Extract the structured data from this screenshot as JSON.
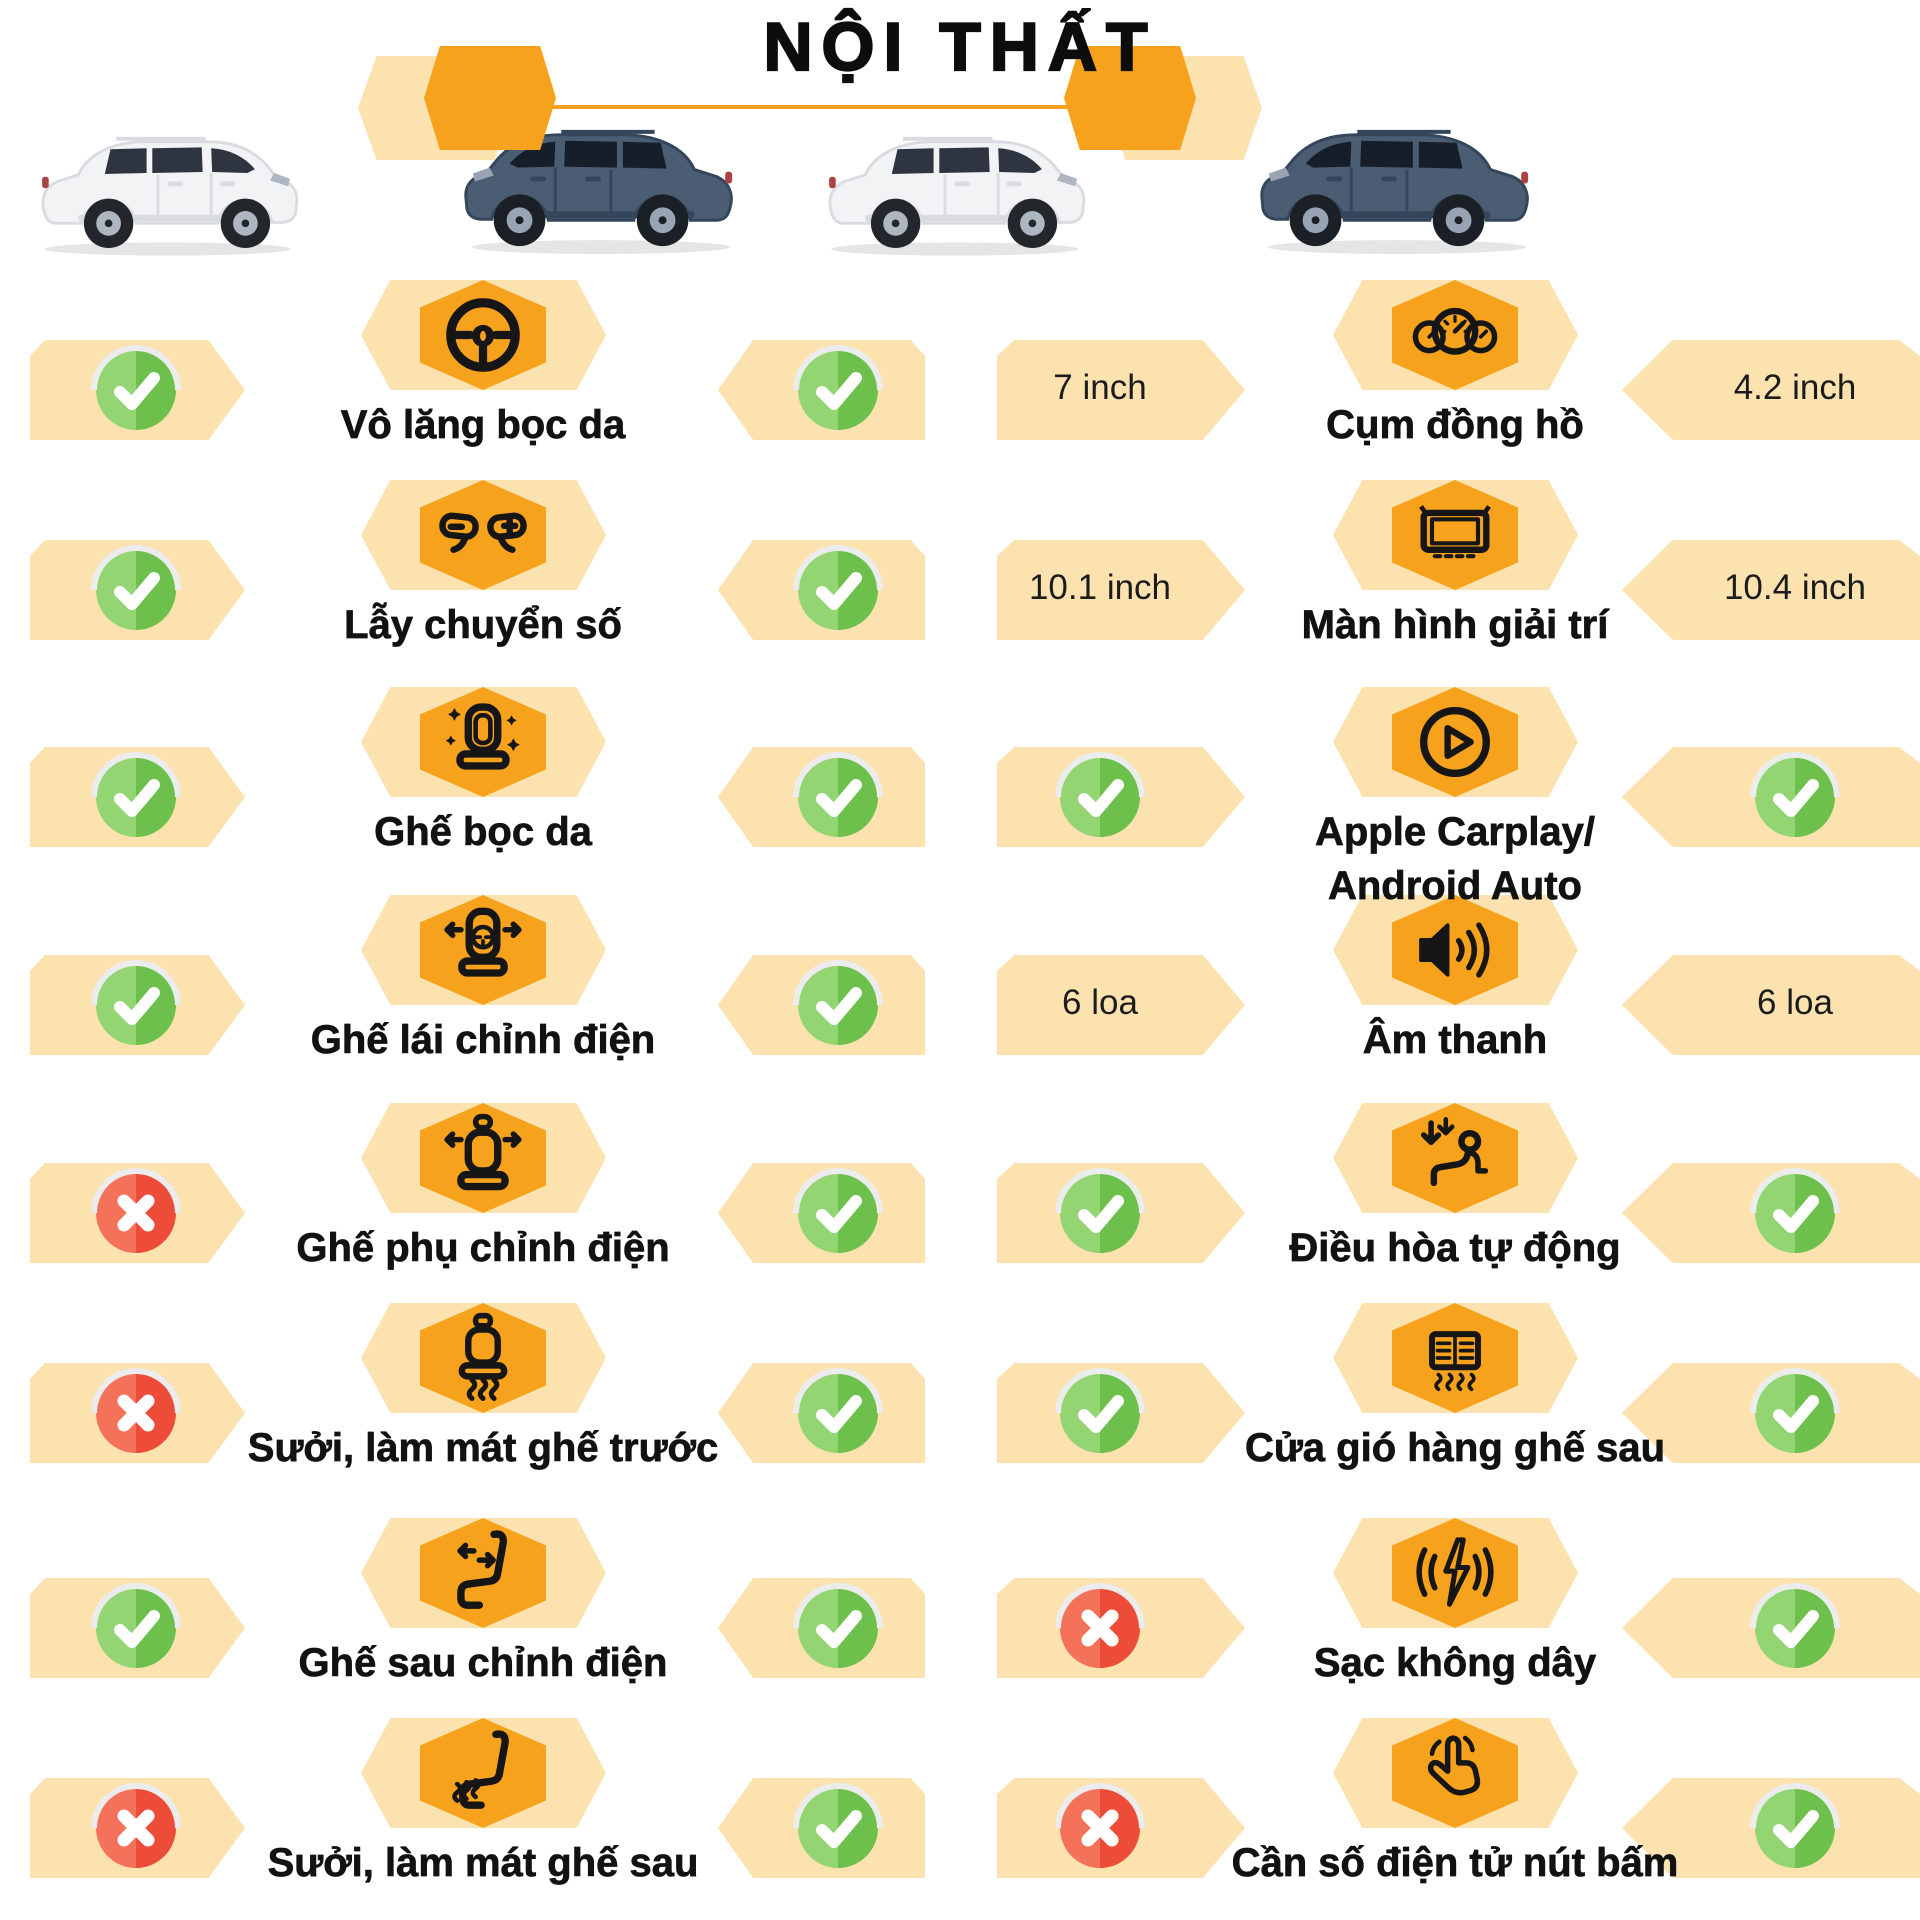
{
  "title": "NỘI THẤT",
  "colors": {
    "accent_orange": "#F7A21C",
    "band_cream": "#FBE2AF",
    "divider_line": "#F6A01E",
    "check_green_light": "#93D473",
    "check_green_dark": "#6CC04B",
    "cross_red_light": "#F4715A",
    "cross_red_dark": "#EC4C38",
    "text": "#121212",
    "car_white_body": "#F2F3F5",
    "car_blue_body": "#4A5D73"
  },
  "cars": [
    {
      "position": "far-left",
      "body_color": "white",
      "facing": "right"
    },
    {
      "position": "center-left",
      "body_color": "dark-blue",
      "facing": "left"
    },
    {
      "position": "center-right",
      "body_color": "white",
      "facing": "right"
    },
    {
      "position": "far-right",
      "body_color": "dark-blue",
      "facing": "left"
    }
  ],
  "columns": [
    {
      "side": "left",
      "rows": [
        {
          "icon": "steering-wheel",
          "label": "Vô lăng bọc da",
          "car1": "check",
          "car2": "check"
        },
        {
          "icon": "paddle-shifters",
          "label": "Lẫy chuyển số",
          "car1": "check",
          "car2": "check"
        },
        {
          "icon": "leather-seat",
          "label": "Ghế bọc da",
          "car1": "check",
          "car2": "check"
        },
        {
          "icon": "power-driver-seat",
          "label": "Ghế lái chỉnh điện",
          "car1": "check",
          "car2": "check"
        },
        {
          "icon": "power-passenger-seat",
          "label": "Ghế phụ chỉnh điện",
          "car1": "cross",
          "car2": "check"
        },
        {
          "icon": "heated-cooled-front-seat",
          "label": "Sưởi, làm mát ghế trước",
          "car1": "cross",
          "car2": "check"
        },
        {
          "icon": "power-rear-seat",
          "label": "Ghế sau chỉnh điện",
          "car1": "check",
          "car2": "check"
        },
        {
          "icon": "heated-cooled-rear-seat",
          "label": "Sưởi, làm mát ghế sau",
          "car1": "cross",
          "car2": "check"
        }
      ]
    },
    {
      "side": "right",
      "rows": [
        {
          "icon": "gauge-cluster",
          "label": "Cụm đồng hồ",
          "car1": "7 inch",
          "car2": "4.2 inch"
        },
        {
          "icon": "infotainment-screen",
          "label": "Màn hình giải trí",
          "car1": "10.1 inch",
          "car2": "10.4 inch"
        },
        {
          "icon": "carplay",
          "label": "Apple Carplay/",
          "label2": "Android Auto",
          "car1": "check",
          "car2": "check"
        },
        {
          "icon": "speaker",
          "label": "Âm thanh",
          "car1": "6 loa",
          "car2": "6 loa"
        },
        {
          "icon": "auto-climate",
          "label": "Điều hòa tự động",
          "car1": "check",
          "car2": "check"
        },
        {
          "icon": "rear-vents",
          "label": "Cửa gió hàng ghế sau",
          "car1": "check",
          "car2": "check"
        },
        {
          "icon": "wireless-charger",
          "label": "Sạc không dây",
          "car1": "cross",
          "car2": "check"
        },
        {
          "icon": "push-button-shifter",
          "label": "Cần số điện tử nút bấm",
          "car1": "cross",
          "car2": "check"
        }
      ]
    }
  ]
}
